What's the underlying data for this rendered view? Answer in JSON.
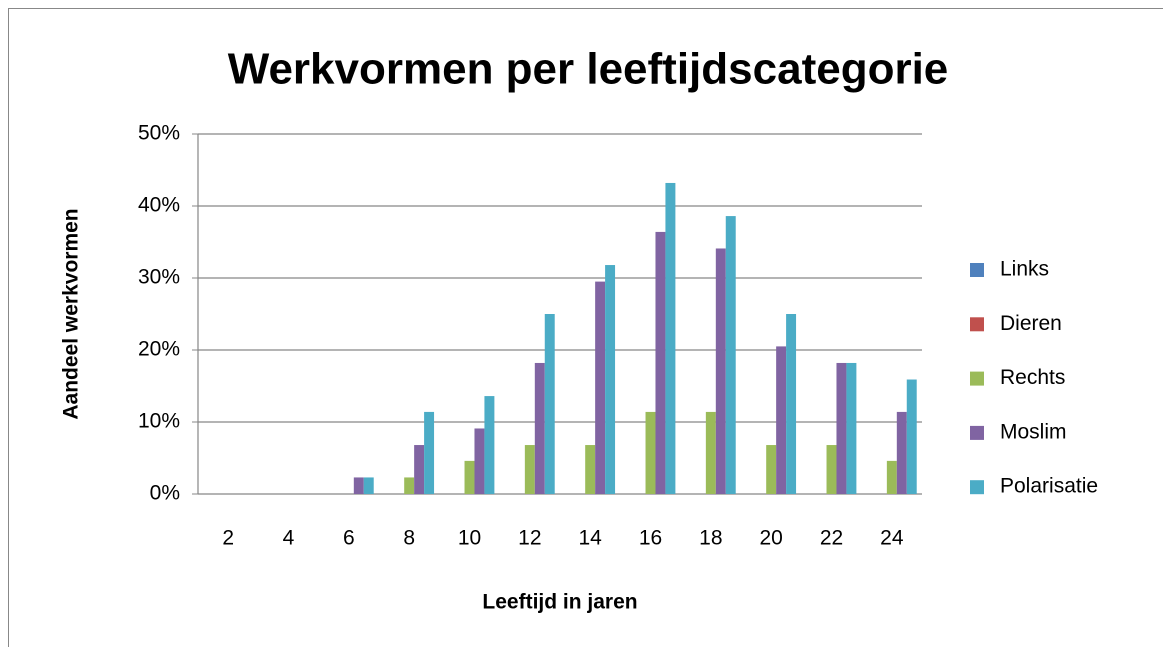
{
  "chart_data": {
    "type": "bar",
    "title": "Werkvormen per leeftijdscategorie",
    "x_label": "Leeftijd in jaren",
    "y_label": "Aandeel werkvormen",
    "categories": [
      "2",
      "4",
      "6",
      "8",
      "10",
      "12",
      "14",
      "16",
      "18",
      "20",
      "22",
      "24"
    ],
    "series": [
      {
        "name": "Links",
        "color": "#4f81bd",
        "values": [
          0,
          0,
          0,
          0,
          0,
          0,
          0,
          0,
          0,
          0,
          0,
          0
        ]
      },
      {
        "name": "Dieren",
        "color": "#c0504d",
        "values": [
          0,
          0,
          0,
          0,
          0,
          0,
          0,
          0,
          0,
          0,
          0,
          0
        ]
      },
      {
        "name": "Rechts",
        "color": "#9bbb59",
        "values": [
          0,
          0,
          0,
          2.3,
          4.6,
          6.8,
          6.8,
          11.4,
          11.4,
          6.8,
          6.8,
          4.6
        ]
      },
      {
        "name": "Moslim",
        "color": "#8064a2",
        "values": [
          0,
          0,
          2.3,
          6.8,
          9.1,
          18.2,
          29.5,
          36.4,
          34.1,
          20.5,
          18.2,
          11.4
        ]
      },
      {
        "name": "Polarisatie",
        "color": "#4bacc6",
        "values": [
          0,
          0,
          2.3,
          11.4,
          13.6,
          25,
          31.8,
          43.2,
          38.6,
          25,
          18.2,
          15.9
        ]
      }
    ],
    "ylim": [
      0,
      50
    ],
    "yticks": [
      {
        "value": 0,
        "label": "0%"
      },
      {
        "value": 10,
        "label": "10%"
      },
      {
        "value": 20,
        "label": "20%"
      },
      {
        "value": 30,
        "label": "30%"
      },
      {
        "value": 40,
        "label": "40%"
      },
      {
        "value": 50,
        "label": "50%"
      }
    ],
    "grid": true,
    "legend": "right"
  }
}
